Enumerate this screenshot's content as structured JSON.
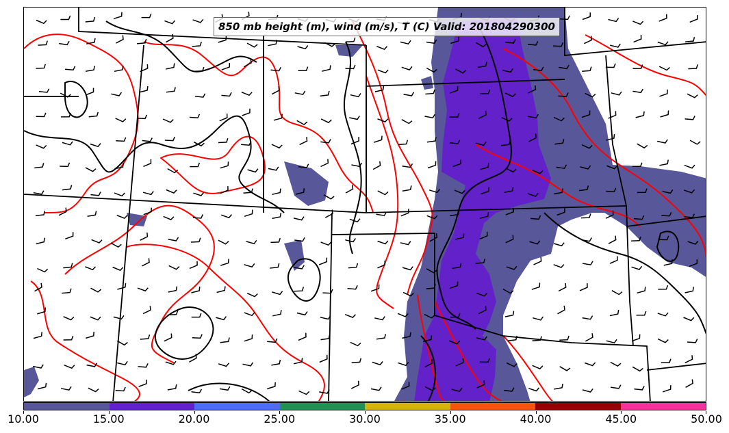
{
  "title": "850 mb height (m), wind (m/s), T (C) Valid: 201804290300",
  "colorbar": {
    "labels": [
      "10.00",
      "15.00",
      "20.00",
      "25.00",
      "30.00",
      "35.00",
      "40.00",
      "45.00",
      "50.00"
    ],
    "colors": [
      "#575799",
      "#6321c9",
      "#4d6df5",
      "#1f9354",
      "#d4b40b",
      "#f3560b",
      "#930202",
      "#f4329b"
    ]
  },
  "colors": {
    "wind_fill_10_15": "#575799",
    "wind_fill_15_20": "#6321c9",
    "temperature_contour": "#ff0000",
    "height_contour": "#000000",
    "state_borders": "#000000"
  },
  "layers": {
    "state_borders": true,
    "height_contours": "black",
    "temperature_contours": "red",
    "wind_barbs": "black",
    "wind_speed_shading": "filled"
  }
}
